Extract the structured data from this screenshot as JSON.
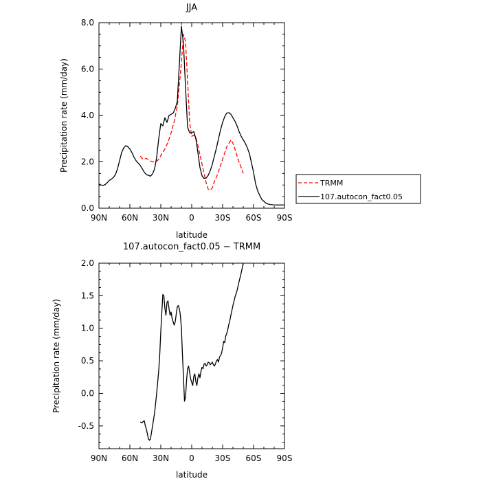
{
  "chart_data": [
    {
      "type": "line",
      "title": "JJA",
      "xlabel": "latitude",
      "ylabel": "Precipitation rate (mm/day)",
      "xlim": [
        90,
        -90
      ],
      "ylim": [
        0,
        8
      ],
      "x_ticks": [
        90,
        60,
        30,
        0,
        -30,
        -60,
        -90
      ],
      "x_tick_labels": [
        "90N",
        "60N",
        "30N",
        "0",
        "30S",
        "60S",
        "90S"
      ],
      "y_ticks": [
        0,
        2,
        4,
        6,
        8
      ],
      "y_tick_labels": [
        "0.0",
        "2.0",
        "4.0",
        "6.0",
        "8.0"
      ],
      "legend_position": "right",
      "series": [
        {
          "name": "TRMM",
          "color": "#ff0000",
          "dash": "dashed",
          "x": [
            50,
            47,
            44,
            41,
            38,
            35,
            32,
            29,
            26,
            23,
            20,
            17,
            14,
            12,
            10,
            8,
            6,
            4,
            2,
            0,
            -2,
            -4,
            -6,
            -8,
            -10,
            -12,
            -14,
            -16,
            -18,
            -20,
            -22,
            -25,
            -28,
            -31,
            -34,
            -37,
            -38,
            -40,
            -42,
            -45,
            -48,
            -50
          ],
          "y": [
            2.25,
            2.1,
            2.15,
            2.05,
            2.0,
            2.0,
            2.1,
            2.35,
            2.55,
            2.85,
            3.25,
            3.75,
            4.4,
            5.3,
            6.3,
            7.5,
            7.2,
            5.5,
            3.7,
            3.1,
            3.15,
            3.05,
            2.7,
            2.3,
            1.9,
            1.5,
            1.1,
            0.82,
            0.78,
            0.88,
            1.15,
            1.45,
            1.85,
            2.25,
            2.65,
            2.85,
            2.95,
            2.8,
            2.55,
            2.1,
            1.75,
            1.5
          ]
        },
        {
          "name": "107.autocon_fact0.05",
          "color": "#000000",
          "dash": "solid",
          "x": [
            90,
            88,
            86,
            84,
            82,
            80,
            78,
            76,
            74,
            72,
            70,
            68,
            66,
            64,
            62,
            60,
            58,
            56,
            54,
            52,
            50,
            48,
            46,
            44,
            42,
            40,
            38,
            36,
            34,
            32,
            30,
            28,
            26,
            24,
            22,
            20,
            18,
            16,
            14,
            12,
            10,
            8,
            6,
            4,
            2,
            0,
            -2,
            -4,
            -6,
            -8,
            -10,
            -12,
            -14,
            -16,
            -18,
            -20,
            -22,
            -24,
            -26,
            -28,
            -30,
            -32,
            -34,
            -36,
            -38,
            -40,
            -42,
            -44,
            -46,
            -48,
            -50,
            -52,
            -54,
            -56,
            -58,
            -60,
            -62,
            -64,
            -66,
            -68,
            -70,
            -72,
            -74,
            -76,
            -78,
            -80,
            -82,
            -84,
            -86,
            -88,
            -90
          ],
          "y": [
            1.05,
            1.0,
            0.98,
            1.02,
            1.1,
            1.2,
            1.25,
            1.32,
            1.45,
            1.7,
            2.05,
            2.4,
            2.6,
            2.7,
            2.65,
            2.55,
            2.4,
            2.2,
            2.05,
            1.95,
            1.85,
            1.7,
            1.55,
            1.45,
            1.42,
            1.38,
            1.48,
            1.7,
            2.2,
            3.0,
            3.65,
            3.55,
            3.9,
            3.7,
            4.0,
            4.05,
            4.1,
            4.3,
            4.6,
            6.2,
            7.85,
            7.1,
            5.2,
            3.5,
            3.25,
            3.25,
            3.3,
            3.0,
            2.4,
            1.75,
            1.4,
            1.28,
            1.3,
            1.42,
            1.62,
            1.9,
            2.25,
            2.6,
            3.0,
            3.38,
            3.7,
            3.95,
            4.1,
            4.12,
            4.05,
            3.9,
            3.75,
            3.55,
            3.3,
            3.1,
            2.95,
            2.8,
            2.6,
            2.35,
            1.95,
            1.55,
            1.05,
            0.75,
            0.55,
            0.38,
            0.3,
            0.22,
            0.18,
            0.16,
            0.15,
            0.14,
            0.14,
            0.14,
            0.14,
            0.14,
            0.14
          ]
        }
      ]
    },
    {
      "type": "line",
      "title": "107.autocon_fact0.05 − TRMM",
      "xlabel": "latitude",
      "ylabel": "Precipitation rate (mm/day)",
      "xlim": [
        90,
        -90
      ],
      "ylim": [
        -0.85,
        2.0
      ],
      "x_ticks": [
        90,
        60,
        30,
        0,
        -30,
        -60,
        -90
      ],
      "x_tick_labels": [
        "90N",
        "60N",
        "30N",
        "0",
        "30S",
        "60S",
        "90S"
      ],
      "y_ticks": [
        -0.5,
        0,
        0.5,
        1.0,
        1.5,
        2.0
      ],
      "y_tick_labels": [
        "-0.5",
        "0.0",
        "0.5",
        "1.0",
        "1.5",
        "2.0"
      ],
      "series": [
        {
          "color": "#000000",
          "dash": "solid",
          "x": [
            50,
            48,
            47,
            46,
            45,
            44,
            43,
            42,
            41,
            40,
            39,
            38,
            36,
            34,
            32,
            31,
            30,
            29,
            28,
            27,
            26,
            25,
            24,
            23,
            22,
            21,
            20,
            19,
            18,
            17,
            16,
            15,
            14,
            13,
            12,
            11,
            10,
            9,
            8,
            7,
            6,
            5,
            4,
            3,
            2,
            1,
            0,
            -1,
            -2,
            -3,
            -4,
            -5,
            -6,
            -7,
            -8,
            -9,
            -10,
            -11,
            -12,
            -13,
            -14,
            -15,
            -16,
            -17,
            -18,
            -19,
            -20,
            -21,
            -22,
            -23,
            -24,
            -25,
            -26,
            -27,
            -28,
            -29,
            -30,
            -31,
            -32,
            -33,
            -34,
            -35,
            -36,
            -37,
            -38,
            -40,
            -42,
            -44,
            -46,
            -48,
            -50
          ],
          "y": [
            -0.44,
            -0.45,
            -0.43,
            -0.42,
            -0.5,
            -0.55,
            -0.62,
            -0.7,
            -0.72,
            -0.7,
            -0.6,
            -0.5,
            -0.3,
            0.0,
            0.35,
            0.6,
            0.95,
            1.25,
            1.52,
            1.5,
            1.3,
            1.2,
            1.4,
            1.42,
            1.3,
            1.2,
            1.25,
            1.15,
            1.1,
            1.05,
            1.1,
            1.22,
            1.33,
            1.35,
            1.3,
            1.2,
            1.0,
            0.6,
            0.25,
            -0.12,
            -0.06,
            0.2,
            0.38,
            0.42,
            0.32,
            0.22,
            0.17,
            0.12,
            0.26,
            0.3,
            0.18,
            0.12,
            0.24,
            0.3,
            0.24,
            0.34,
            0.4,
            0.38,
            0.45,
            0.46,
            0.42,
            0.44,
            0.48,
            0.47,
            0.44,
            0.46,
            0.48,
            0.44,
            0.42,
            0.45,
            0.5,
            0.52,
            0.48,
            0.56,
            0.58,
            0.62,
            0.7,
            0.8,
            0.78,
            0.88,
            0.92,
            0.98,
            1.06,
            1.12,
            1.2,
            1.35,
            1.48,
            1.58,
            1.72,
            1.85,
            2.0
          ]
        }
      ]
    }
  ]
}
